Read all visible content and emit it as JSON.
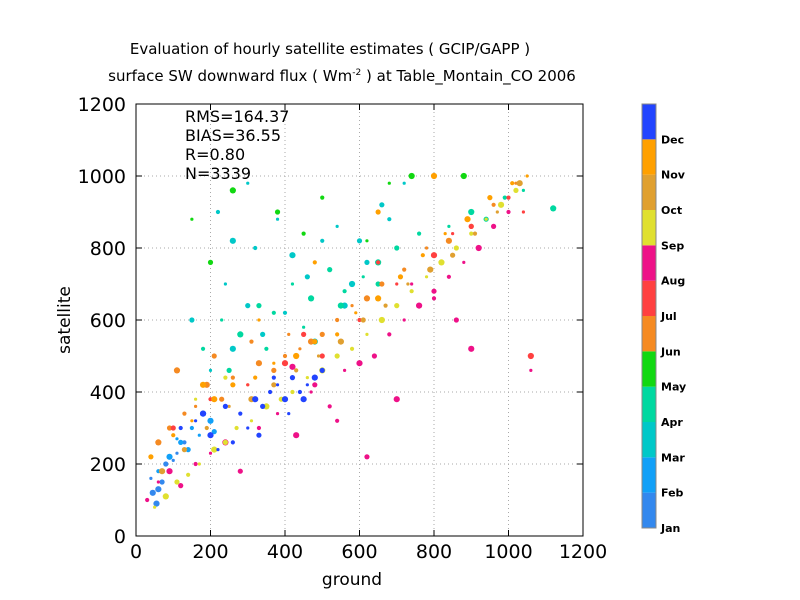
{
  "chart_data": {
    "type": "scatter",
    "title": "Evaluation of hourly satellite estimates ( GCIP/GAPP )",
    "subtitle_parts": {
      "before": "surface SW downward flux ( Wm",
      "superscript": "-2",
      "after": " ) at Table_Montain_CO 2006"
    },
    "xlabel": "ground",
    "ylabel": "satellite",
    "xlim": [
      0,
      1200
    ],
    "ylim": [
      0,
      1200
    ],
    "x_ticks": [
      0,
      200,
      400,
      600,
      800,
      1000,
      1200
    ],
    "y_ticks": [
      0,
      200,
      400,
      600,
      800,
      1000,
      1200
    ],
    "grid": true,
    "stats": [
      "RMS=164.37",
      "BIAS=36.55",
      "R=0.80",
      "N=3339"
    ],
    "colorbar": [
      {
        "label": "Jan",
        "color": "#3388ee"
      },
      {
        "label": "Feb",
        "color": "#11a0f8"
      },
      {
        "label": "Mar",
        "color": "#00c8c8"
      },
      {
        "label": "Apr",
        "color": "#00d8a0"
      },
      {
        "label": "May",
        "color": "#11d811"
      },
      {
        "label": "Jun",
        "color": "#f58a22"
      },
      {
        "label": "Jul",
        "color": "#ff4040"
      },
      {
        "label": "Aug",
        "color": "#ee1188"
      },
      {
        "label": "Sep",
        "color": "#e0e030"
      },
      {
        "label": "Oct",
        "color": "#e0a030"
      },
      {
        "label": "Nov",
        "color": "#ffa000"
      },
      {
        "label": "Dec",
        "color": "#2244ff"
      }
    ],
    "series": [
      {
        "month": 0,
        "x": [
          40,
          60,
          80,
          90,
          110,
          55,
          70,
          130,
          100,
          45
        ],
        "y": [
          160,
          130,
          200,
          180,
          230,
          90,
          150,
          260,
          210,
          120
        ]
      },
      {
        "month": 1,
        "x": [
          90,
          120,
          150,
          170,
          200,
          140,
          60,
          110,
          180,
          210
        ],
        "y": [
          220,
          260,
          300,
          280,
          320,
          240,
          180,
          270,
          340,
          290
        ]
      },
      {
        "month": 2,
        "x": [
          150,
          200,
          240,
          260,
          300,
          320,
          380,
          420,
          460,
          500,
          540,
          580,
          620,
          680,
          720,
          260,
          340,
          400,
          200,
          560,
          660,
          220,
          300,
          480,
          600
        ],
        "y": [
          600,
          760,
          700,
          820,
          640,
          800,
          880,
          780,
          720,
          820,
          860,
          700,
          760,
          880,
          980,
          520,
          560,
          620,
          460,
          640,
          920,
          900,
          980,
          540,
          820
        ]
      },
      {
        "month": 3,
        "x": [
          180,
          230,
          280,
          330,
          370,
          420,
          470,
          520,
          560,
          610,
          650,
          700,
          760,
          840,
          900,
          940,
          990,
          1040,
          1120,
          250,
          350,
          450,
          550,
          650
        ],
        "y": [
          520,
          600,
          560,
          640,
          620,
          700,
          660,
          740,
          680,
          720,
          760,
          800,
          840,
          860,
          900,
          880,
          940,
          960,
          910,
          460,
          520,
          580,
          640,
          700
        ]
      },
      {
        "month": 4,
        "x": [
          150,
          260,
          380,
          500,
          620,
          740,
          200,
          450,
          680,
          880
        ],
        "y": [
          880,
          960,
          900,
          940,
          820,
          1000,
          760,
          840,
          980,
          1000
        ]
      },
      {
        "month": 5,
        "x": [
          60,
          90,
          130,
          160,
          190,
          230,
          260,
          300,
          330,
          370,
          400,
          440,
          470,
          500,
          540,
          580,
          620,
          660,
          720,
          780,
          840,
          900,
          960,
          1020,
          110,
          210,
          310,
          410
        ],
        "y": [
          260,
          300,
          340,
          360,
          420,
          380,
          440,
          420,
          480,
          460,
          500,
          520,
          540,
          560,
          600,
          640,
          660,
          700,
          740,
          800,
          820,
          860,
          920,
          980,
          460,
          500,
          540,
          560
        ]
      },
      {
        "month": 6,
        "x": [
          100,
          200,
          300,
          400,
          500,
          600,
          700,
          800,
          900,
          1000,
          1040,
          1060,
          450,
          650,
          850
        ],
        "y": [
          300,
          380,
          420,
          480,
          500,
          600,
          700,
          780,
          860,
          940,
          900,
          500,
          560,
          760,
          840
        ]
      },
      {
        "month": 7,
        "x": [
          30,
          60,
          90,
          120,
          160,
          200,
          240,
          280,
          330,
          380,
          430,
          480,
          520,
          560,
          600,
          640,
          680,
          720,
          760,
          800,
          840,
          880,
          920,
          960,
          1000,
          1060,
          900,
          860,
          800,
          740,
          700,
          620,
          540,
          470,
          420
        ],
        "y": [
          100,
          150,
          180,
          140,
          200,
          230,
          260,
          180,
          300,
          340,
          280,
          420,
          360,
          460,
          480,
          500,
          560,
          600,
          640,
          680,
          720,
          760,
          800,
          860,
          900,
          460,
          520,
          600,
          660,
          700,
          380,
          220,
          320,
          400,
          470
        ]
      },
      {
        "month": 8,
        "x": [
          50,
          80,
          110,
          140,
          170,
          210,
          240,
          270,
          310,
          350,
          390,
          420,
          460,
          500,
          540,
          580,
          620,
          660,
          700,
          740,
          780,
          820,
          860,
          900,
          940,
          980,
          1020,
          240,
          160
        ],
        "y": [
          80,
          110,
          150,
          170,
          200,
          240,
          260,
          300,
          320,
          360,
          380,
          400,
          440,
          460,
          500,
          520,
          560,
          600,
          640,
          680,
          720,
          760,
          800,
          840,
          880,
          920,
          960,
          440,
          380
        ]
      },
      {
        "month": 9,
        "x": [
          70,
          130,
          190,
          250,
          310,
          370,
          430,
          490,
          550,
          610,
          670,
          730,
          790,
          850,
          910,
          970,
          1030
        ],
        "y": [
          180,
          240,
          300,
          360,
          380,
          420,
          460,
          500,
          540,
          600,
          640,
          700,
          740,
          780,
          840,
          900,
          980
        ]
      },
      {
        "month": 10,
        "x": [
          40,
          100,
          150,
          210,
          260,
          320,
          370,
          430,
          480,
          540,
          590,
          650,
          710,
          770,
          830,
          890,
          950,
          1010,
          1050,
          800,
          650,
          480,
          330,
          180
        ],
        "y": [
          220,
          280,
          320,
          380,
          420,
          440,
          480,
          500,
          540,
          560,
          620,
          660,
          720,
          780,
          840,
          880,
          940,
          980,
          1000,
          1000,
          900,
          760,
          600,
          420
        ]
      },
      {
        "month": 11,
        "x": [
          120,
          160,
          200,
          240,
          280,
          300,
          320,
          340,
          360,
          380,
          400,
          420,
          440,
          460,
          480,
          500,
          260,
          220,
          180,
          330,
          370,
          410,
          450
        ],
        "y": [
          300,
          320,
          280,
          360,
          340,
          300,
          380,
          360,
          400,
          420,
          380,
          440,
          400,
          420,
          440,
          460,
          260,
          240,
          340,
          280,
          440,
          340,
          380
        ]
      }
    ]
  }
}
